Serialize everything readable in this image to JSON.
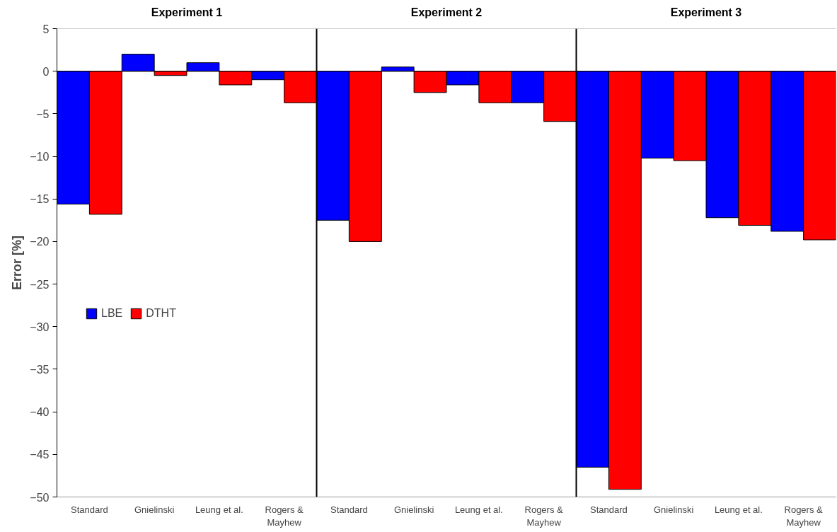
{
  "chart_data": {
    "type": "bar",
    "ylabel": "Error [%]",
    "categories": [
      "Standard",
      "Gnielinski",
      "Leung et al.",
      "Rogers & Mayhew",
      "Standard",
      "Gnielinski",
      "Leung et al.",
      "Rogers & Mayhew",
      "Standard",
      "Gnielinski",
      "Leung et al.",
      "Rogers & Mayhew"
    ],
    "series": [
      {
        "name": "LBE",
        "color": "#0000ff",
        "values": [
          -15.6,
          2.0,
          1.0,
          -1.0,
          -17.5,
          0.5,
          -1.6,
          -3.7,
          -46.5,
          -10.2,
          -17.2,
          -18.8
        ]
      },
      {
        "name": "DTHT",
        "color": "#ff0000",
        "values": [
          -16.8,
          -0.5,
          -1.6,
          -3.7,
          -20.0,
          -2.5,
          -3.7,
          -5.9,
          -49.1,
          -10.5,
          -18.1,
          -19.8
        ]
      }
    ],
    "annotations": [
      "Experiment 1",
      "Experiment 2",
      "Experiment 3"
    ],
    "ylim": [
      -50,
      5
    ],
    "yticks": [
      5,
      0,
      -5,
      -10,
      -15,
      -20,
      -25,
      -30,
      -35,
      -40,
      -45,
      -50
    ],
    "grid": false,
    "legend": "left"
  }
}
